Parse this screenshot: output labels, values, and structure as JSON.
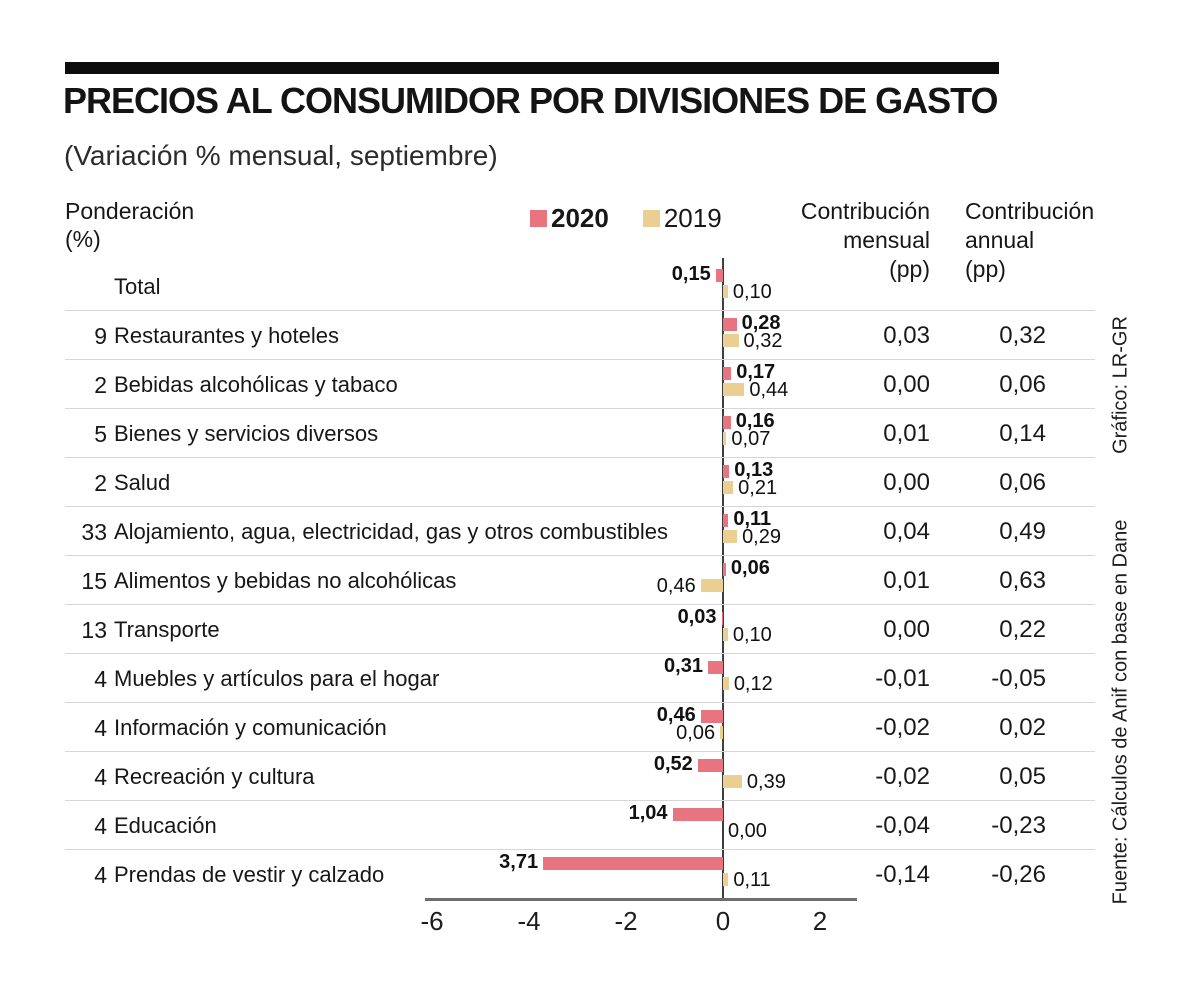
{
  "page": {
    "title": "PRECIOS AL CONSUMIDOR POR DIVISIONES DE GASTO",
    "subtitle": "(Variación % mensual, septiembre)"
  },
  "header": {
    "weight_label": "Ponderación",
    "weight_unit": "(%)",
    "legend": [
      {
        "label": "2020",
        "color": "#E8747F"
      },
      {
        "label": "2019",
        "color": "#EBCF92"
      }
    ],
    "col_monthly": [
      "Contribución",
      "mensual",
      "(pp)"
    ],
    "col_annual": [
      "Contribución",
      "annual",
      "(pp)"
    ]
  },
  "chart_data": {
    "type": "bar",
    "orientation": "horizontal",
    "title": "PRECIOS AL CONSUMIDOR POR DIVISIONES DE GASTO",
    "subtitle": "(Variación % mensual, septiembre)",
    "legend_position": "top",
    "series_names": [
      "2020",
      "2019"
    ],
    "x_ticks": [
      "-6",
      "-4",
      "-2",
      "0",
      "2"
    ],
    "x_tick_values": [
      -6,
      -4,
      -2,
      0,
      2
    ],
    "xlim": [
      -6.15,
      2.9
    ],
    "note": "bar2020/bar2019 are signed chart units (negative = bar drawn left of zero line); display labels show absolute values with comma decimals",
    "rows": [
      {
        "weight": "",
        "label": "Total",
        "y2020": "0,15",
        "y2019": "0,10",
        "bar2020": -0.15,
        "bar2019": 0.1,
        "monthly": "",
        "annual": ""
      },
      {
        "weight": "9",
        "label": "Restaurantes y hoteles",
        "y2020": "0,28",
        "y2019": "0,32",
        "bar2020": 0.28,
        "bar2019": 0.32,
        "monthly": "0,03",
        "annual": "0,32"
      },
      {
        "weight": "2",
        "label": "Bebidas alcohólicas y tabaco",
        "y2020": "0,17",
        "y2019": "0,44",
        "bar2020": 0.17,
        "bar2019": 0.44,
        "monthly": "0,00",
        "annual": "0,06"
      },
      {
        "weight": "5",
        "label": "Bienes y servicios diversos",
        "y2020": "0,16",
        "y2019": "0,07",
        "bar2020": 0.16,
        "bar2019": 0.07,
        "monthly": "0,01",
        "annual": "0,14"
      },
      {
        "weight": "2",
        "label": "Salud",
        "y2020": "0,13",
        "y2019": "0,21",
        "bar2020": 0.13,
        "bar2019": 0.21,
        "monthly": "0,00",
        "annual": "0,06"
      },
      {
        "weight": "33",
        "label": "Alojamiento, agua, electricidad, gas y otros combustibles",
        "y2020": "0,11",
        "y2019": "0,29",
        "bar2020": 0.11,
        "bar2019": 0.29,
        "monthly": "0,04",
        "annual": "0,49"
      },
      {
        "weight": "15",
        "label": "Alimentos y bebidas no alcohólicas",
        "y2020": "0,06",
        "y2019": "0,46",
        "bar2020": 0.06,
        "bar2019": -0.46,
        "monthly": "0,01",
        "annual": "0,63"
      },
      {
        "weight": "13",
        "label": "Transporte",
        "y2020": "0,03",
        "y2019": "0,10",
        "bar2020": -0.03,
        "bar2019": 0.1,
        "monthly": "0,00",
        "annual": "0,22"
      },
      {
        "weight": "4",
        "label": "Muebles y artículos para el hogar",
        "y2020": "0,31",
        "y2019": "0,12",
        "bar2020": -0.31,
        "bar2019": 0.12,
        "monthly": "-0,01",
        "annual": "-0,05"
      },
      {
        "weight": "4",
        "label": "Información y comunicación",
        "y2020": "0,46",
        "y2019": "0,06",
        "bar2020": -0.46,
        "bar2019": -0.06,
        "monthly": "-0,02",
        "annual": "0,02"
      },
      {
        "weight": "4",
        "label": "Recreación y cultura",
        "y2020": "0,52",
        "y2019": "0,39",
        "bar2020": -0.52,
        "bar2019": 0.39,
        "monthly": "-0,02",
        "annual": "0,05"
      },
      {
        "weight": "4",
        "label": "Educación",
        "y2020": "1,04",
        "y2019": "0,00",
        "bar2020": -1.04,
        "bar2019": 0.0,
        "monthly": "-0,04",
        "annual": "-0,23"
      },
      {
        "weight": "4",
        "label": "Prendas de vestir y calzado",
        "y2020": "3,71",
        "y2019": "0,11",
        "bar2020": -3.71,
        "bar2019": 0.11,
        "monthly": "-0,14",
        "annual": "-0,26"
      }
    ]
  },
  "credits": {
    "graphic": "Gráfico: LR-GR",
    "source": "Fuente: Cálculos de Anif con base en Dane"
  },
  "colors": {
    "s2020": "#E8747F",
    "s2019": "#EBCF92",
    "top_bar": "#0D0D0D",
    "separator": "#D6D6D6",
    "axis_line": "#6E6E6E",
    "zero_line": "#3E3E3E"
  }
}
